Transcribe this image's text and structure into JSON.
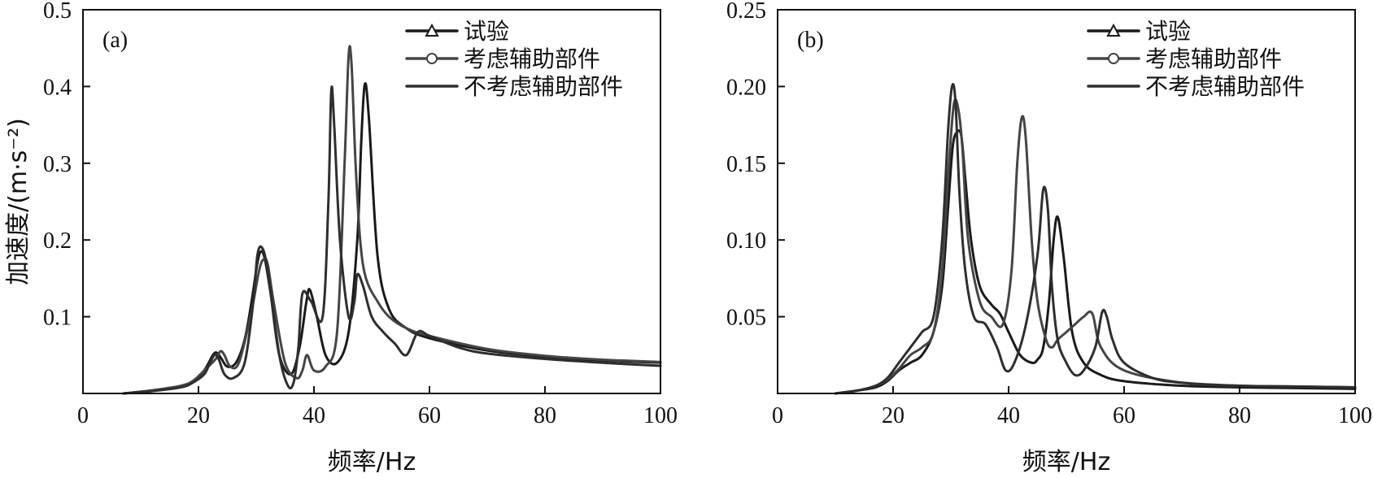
{
  "chart_data": [
    {
      "type": "line",
      "panel_label": "(a)",
      "xlabel": "频率/Hz",
      "ylabel": "加速度/(m·s⁻²)",
      "xlim": [
        0,
        100
      ],
      "ylim": [
        0,
        0.5
      ],
      "xticks": [
        "0",
        "20",
        "40",
        "60",
        "80",
        "100"
      ],
      "yticks": [
        "0.1",
        "0.2",
        "0.3",
        "0.4",
        "0.5"
      ],
      "xtick_values": [
        0,
        20,
        40,
        60,
        80,
        100
      ],
      "ytick_values": [
        0.1,
        0.2,
        0.3,
        0.4,
        0.5
      ],
      "grid": false,
      "legend_position": "top-right",
      "series": [
        {
          "name": "试验",
          "marker": "triangle",
          "color": "#1a1a1a",
          "x": [
            7,
            12,
            17,
            19,
            21,
            22.5,
            23.2,
            24,
            25,
            26.5,
            28,
            29.2,
            30.2,
            30.8,
            31.5,
            32.5,
            34,
            36,
            37.5,
            38.7,
            39.3,
            40.5,
            42,
            44,
            46,
            47.5,
            48.2,
            48.8,
            49.5,
            51,
            53,
            56,
            60,
            70,
            80,
            90,
            100
          ],
          "y": [
            0.0,
            0.004,
            0.01,
            0.016,
            0.03,
            0.05,
            0.053,
            0.045,
            0.035,
            0.04,
            0.07,
            0.12,
            0.17,
            0.185,
            0.175,
            0.13,
            0.05,
            0.025,
            0.06,
            0.12,
            0.135,
            0.1,
            0.05,
            0.04,
            0.08,
            0.2,
            0.33,
            0.403,
            0.36,
            0.18,
            0.11,
            0.085,
            0.072,
            0.056,
            0.048,
            0.043,
            0.04
          ]
        },
        {
          "name": "考虑辅助部件",
          "marker": "circle",
          "color": "#454545",
          "x": [
            7,
            12,
            17,
            19,
            21,
            23,
            23.8,
            24.5,
            25.5,
            27,
            29,
            30.5,
            31.3,
            32,
            33,
            35,
            37,
            38,
            38.8,
            40,
            42,
            44,
            45.3,
            46,
            46.5,
            47.2,
            48,
            49,
            51,
            53,
            56,
            60,
            70,
            80,
            90,
            100
          ],
          "y": [
            0.0,
            0.004,
            0.01,
            0.016,
            0.03,
            0.045,
            0.055,
            0.05,
            0.035,
            0.04,
            0.1,
            0.16,
            0.175,
            0.168,
            0.12,
            0.04,
            0.02,
            0.03,
            0.05,
            0.03,
            0.035,
            0.08,
            0.3,
            0.44,
            0.43,
            0.3,
            0.2,
            0.15,
            0.12,
            0.1,
            0.085,
            0.075,
            0.058,
            0.049,
            0.044,
            0.041
          ]
        },
        {
          "name": "不考虑辅助部件",
          "marker": "none",
          "color": "#2e2e2e",
          "x": [
            7,
            12,
            17,
            19,
            21,
            22,
            22.8,
            23.5,
            24.5,
            26,
            28,
            29.5,
            30.2,
            31,
            32,
            34,
            35.5,
            36.5,
            37.3,
            38,
            39.5,
            41.5,
            42.5,
            43,
            43.5,
            44.5,
            46,
            47,
            47.5,
            48.5,
            50,
            52,
            54,
            56,
            58,
            60,
            65,
            70,
            80,
            90,
            100
          ],
          "y": [
            0.0,
            0.003,
            0.008,
            0.014,
            0.025,
            0.04,
            0.05,
            0.045,
            0.025,
            0.02,
            0.04,
            0.12,
            0.18,
            0.19,
            0.16,
            0.05,
            0.01,
            0.015,
            0.06,
            0.13,
            0.12,
            0.1,
            0.25,
            0.395,
            0.35,
            0.2,
            0.1,
            0.12,
            0.155,
            0.14,
            0.1,
            0.08,
            0.065,
            0.05,
            0.08,
            0.075,
            0.06,
            0.052,
            0.045,
            0.04,
            0.036
          ]
        }
      ]
    },
    {
      "type": "line",
      "panel_label": "(b)",
      "xlabel": "频率/Hz",
      "ylabel": "",
      "xlim": [
        0,
        100
      ],
      "ylim": [
        0,
        0.25
      ],
      "xticks": [
        "0",
        "20",
        "40",
        "60",
        "80",
        "100"
      ],
      "yticks": [
        "0.05",
        "0.10",
        "0.15",
        "0.20",
        "0.25"
      ],
      "xtick_values": [
        0,
        20,
        40,
        60,
        80,
        100
      ],
      "ytick_values": [
        0.05,
        0.1,
        0.15,
        0.2,
        0.25
      ],
      "grid": false,
      "legend_position": "top-right",
      "series": [
        {
          "name": "试验",
          "marker": "triangle",
          "color": "#1a1a1a",
          "x": [
            10,
            14,
            17,
            19,
            21,
            23,
            25,
            27,
            28.5,
            29.5,
            30.3,
            31,
            31.8,
            32.5,
            33.5,
            35,
            37,
            38.5,
            40,
            42,
            44,
            45,
            46,
            47,
            47.8,
            48.5,
            49.5,
            51,
            53,
            56,
            60,
            70,
            80,
            90,
            100
          ],
          "y": [
            0.0,
            0.002,
            0.004,
            0.008,
            0.015,
            0.02,
            0.025,
            0.04,
            0.07,
            0.12,
            0.16,
            0.17,
            0.168,
            0.14,
            0.1,
            0.07,
            0.058,
            0.052,
            0.04,
            0.025,
            0.02,
            0.022,
            0.03,
            0.06,
            0.1,
            0.115,
            0.09,
            0.04,
            0.02,
            0.012,
            0.008,
            0.005,
            0.004,
            0.0035,
            0.003
          ]
        },
        {
          "name": "考虑辅助部件",
          "marker": "circle",
          "color": "#454545",
          "x": [
            10,
            14,
            17,
            19,
            21,
            23,
            25,
            27,
            28.5,
            29.5,
            30.5,
            31.3,
            32,
            33,
            35,
            37,
            39,
            40.5,
            41.5,
            42.3,
            43,
            44,
            45,
            46.5,
            47.5,
            48.5,
            50,
            51.5,
            53,
            54.5,
            56,
            60,
            70,
            80,
            90,
            100
          ],
          "y": [
            0.0,
            0.002,
            0.005,
            0.009,
            0.016,
            0.025,
            0.03,
            0.04,
            0.08,
            0.14,
            0.188,
            0.185,
            0.16,
            0.1,
            0.06,
            0.05,
            0.045,
            0.08,
            0.15,
            0.18,
            0.165,
            0.1,
            0.06,
            0.035,
            0.03,
            0.035,
            0.04,
            0.045,
            0.05,
            0.052,
            0.03,
            0.015,
            0.007,
            0.005,
            0.0045,
            0.004
          ]
        },
        {
          "name": "不考虑辅助部件",
          "marker": "none",
          "color": "#2e2e2e",
          "x": [
            10,
            14,
            17,
            19,
            21,
            23,
            25,
            27,
            28.5,
            29.5,
            30.2,
            30.8,
            31.5,
            32.5,
            34,
            36,
            38,
            39.5,
            41,
            43,
            45,
            46,
            46.8,
            47.5,
            48.5,
            50,
            51.5,
            53,
            55,
            56.2,
            57,
            58,
            60,
            65,
            70,
            80,
            90,
            100
          ],
          "y": [
            0.0,
            0.002,
            0.005,
            0.01,
            0.02,
            0.03,
            0.04,
            0.05,
            0.1,
            0.17,
            0.2,
            0.19,
            0.13,
            0.08,
            0.05,
            0.045,
            0.03,
            0.015,
            0.02,
            0.045,
            0.09,
            0.133,
            0.12,
            0.07,
            0.035,
            0.02,
            0.012,
            0.015,
            0.03,
            0.053,
            0.05,
            0.035,
            0.02,
            0.01,
            0.007,
            0.005,
            0.0045,
            0.004
          ]
        }
      ]
    }
  ]
}
